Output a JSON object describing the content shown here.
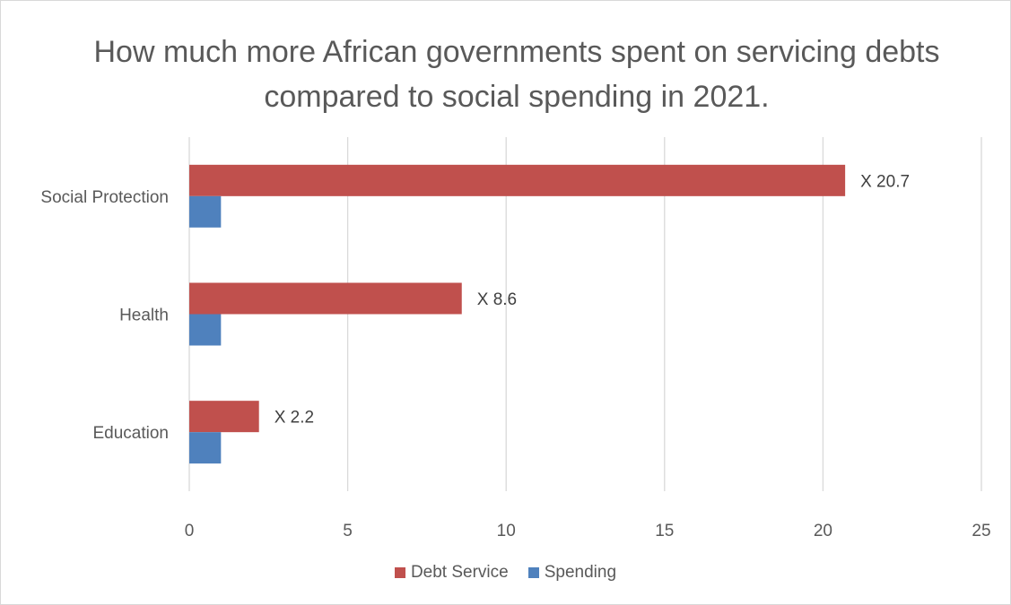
{
  "chart_data": {
    "type": "bar",
    "orientation": "horizontal",
    "title": "How much more African governments spent on servicing debts compared to social spending in 2021.",
    "categories": [
      "Social Protection",
      "Health",
      "Education"
    ],
    "series": [
      {
        "name": "Debt Service",
        "color": "#c0504d",
        "values": [
          20.7,
          8.6,
          2.2
        ],
        "labels": [
          "X 20.7",
          "X 8.6",
          "X 2.2"
        ]
      },
      {
        "name": "Spending",
        "color": "#4f81bd",
        "values": [
          1,
          1,
          1
        ]
      }
    ],
    "xlim": [
      0,
      25
    ],
    "xticks": [
      0,
      5,
      10,
      15,
      20,
      25
    ],
    "grid": true,
    "legend": "bottom"
  }
}
